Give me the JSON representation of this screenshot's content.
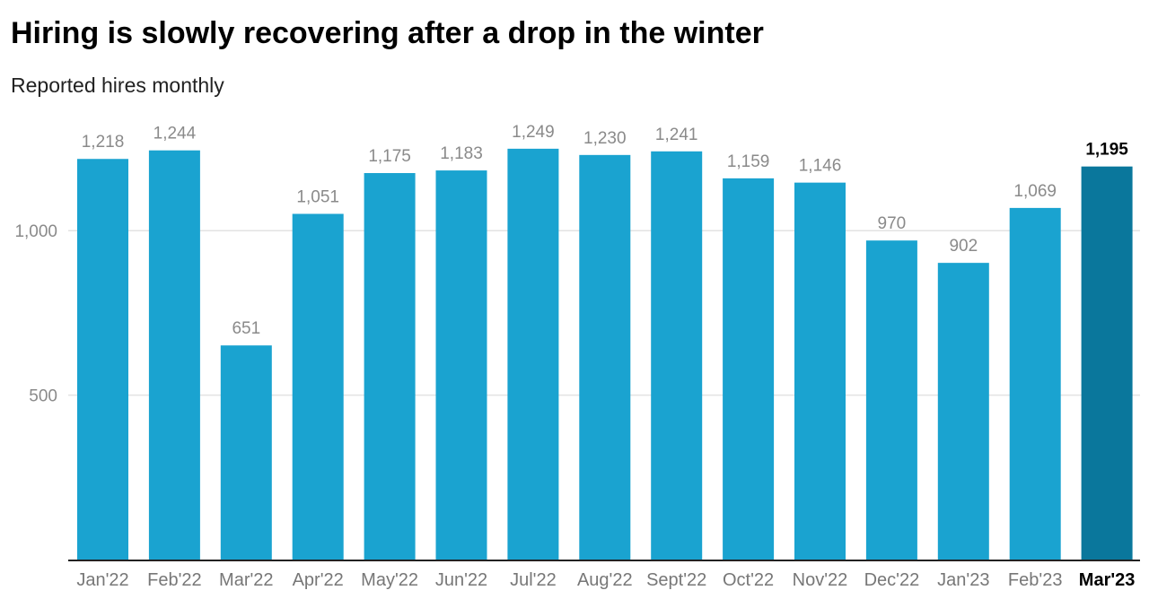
{
  "title": "Hiring is slowly recovering after a drop in the winter",
  "subtitle": "Reported hires monthly",
  "chart_data": {
    "type": "bar",
    "title": "Hiring is slowly recovering after a drop in the winter",
    "subtitle": "Reported hires monthly",
    "xlabel": "",
    "ylabel": "",
    "categories": [
      "Jan'22",
      "Feb'22",
      "Mar'22",
      "Apr'22",
      "May'22",
      "Jun'22",
      "Jul'22",
      "Aug'22",
      "Sept'22",
      "Oct'22",
      "Nov'22",
      "Dec'22",
      "Jan'23",
      "Feb'23",
      "Mar'23"
    ],
    "values": [
      1218,
      1244,
      651,
      1051,
      1175,
      1183,
      1249,
      1230,
      1241,
      1159,
      1146,
      970,
      902,
      1069,
      1195
    ],
    "value_labels": [
      "1,218",
      "1,244",
      "651",
      "1,051",
      "1,175",
      "1,183",
      "1,249",
      "1,230",
      "1,241",
      "1,159",
      "1,146",
      "970",
      "902",
      "1,069",
      "1,195"
    ],
    "ylim": [
      0,
      1250
    ],
    "yticks": [
      500,
      1000
    ],
    "ytick_labels": [
      "500",
      "1,000"
    ],
    "highlight_index": 14,
    "colors": {
      "bar": "#1aa3d0",
      "highlight": "#0a779c",
      "grid": "#e3e3e3",
      "axis": "#222222"
    },
    "grid": true,
    "legend": "none"
  }
}
